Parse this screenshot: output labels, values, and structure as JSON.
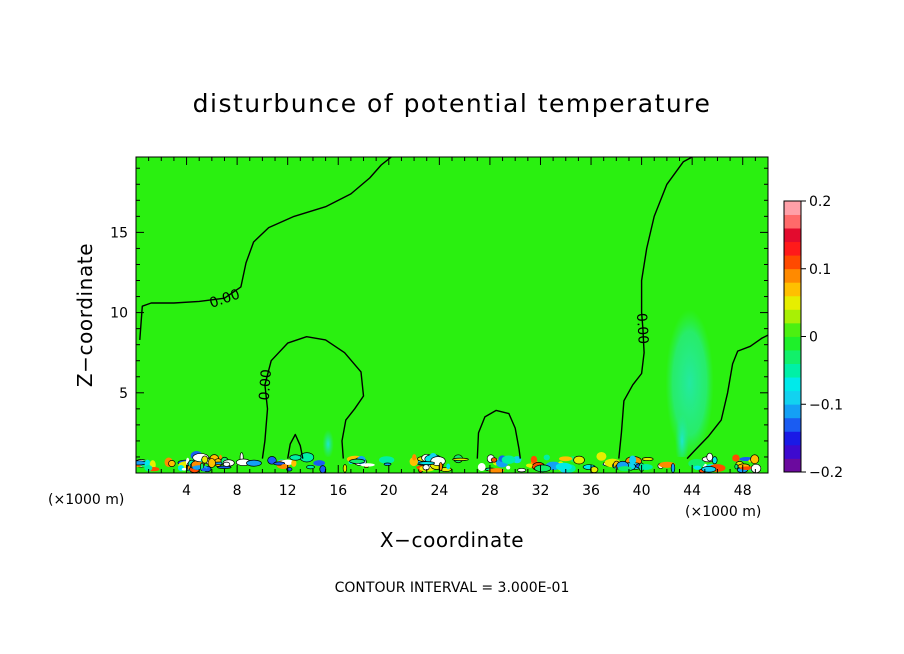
{
  "chart_data": {
    "type": "contour",
    "title": "disturbunce of potential temperature",
    "xlabel": "X−coordinate",
    "ylabel": "Z−coordinate",
    "x_unit": "(×1000 m)",
    "x_unit_right": "(×1000 m)",
    "xlim": [
      0,
      50
    ],
    "ylim": [
      0,
      19.7
    ],
    "x_ticks": [
      4,
      8,
      12,
      16,
      20,
      24,
      28,
      32,
      36,
      40,
      44,
      48
    ],
    "y_ticks": [
      5,
      10,
      15
    ],
    "contour_interval_text": "CONTOUR INTERVAL = 3.000E-01",
    "contour_label": "0.00",
    "background_value": 0.01,
    "colorbar": {
      "ticks": [
        "0.2",
        "0.1",
        "0",
        "−0.1",
        "−0.2"
      ],
      "tick_values": [
        0.2,
        0.1,
        0,
        -0.1,
        -0.2
      ],
      "colors": [
        "#6b0a9e",
        "#3d0acf",
        "#1a1ae6",
        "#1a5cf2",
        "#14a0f5",
        "#12d2f0",
        "#00eaea",
        "#00f0a6",
        "#12f06a",
        "#1ef02a",
        "#4cf011",
        "#a8f005",
        "#e6ee00",
        "#ffc000",
        "#ff8a00",
        "#ff4a00",
        "#ff1a1a",
        "#e30b2e",
        "#ff6a6a",
        "#ffa0a8"
      ]
    },
    "zero_contours": [
      {
        "label": "0.00",
        "points": [
          [
            0.3,
            8.3
          ],
          [
            0.5,
            10.4
          ],
          [
            1.2,
            10.6
          ],
          [
            3,
            10.6
          ],
          [
            5,
            10.7
          ],
          [
            7,
            10.9
          ],
          [
            8.3,
            11.6
          ],
          [
            8.7,
            13.1
          ],
          [
            9.3,
            14.4
          ],
          [
            10.5,
            15.3
          ],
          [
            12.5,
            16.0
          ],
          [
            15,
            16.6
          ],
          [
            17,
            17.4
          ],
          [
            18.5,
            18.4
          ],
          [
            19.4,
            19.2
          ],
          [
            20.2,
            19.7
          ]
        ]
      },
      {
        "label": "0.00",
        "points": [
          [
            10,
            0.9
          ],
          [
            10.2,
            2
          ],
          [
            10.4,
            4
          ],
          [
            10.2,
            5.5
          ],
          [
            10.7,
            7
          ],
          [
            12,
            8.1
          ],
          [
            13.5,
            8.5
          ],
          [
            15,
            8.3
          ],
          [
            16.5,
            7.5
          ],
          [
            17.8,
            6.3
          ],
          [
            18,
            4.8
          ],
          [
            17.3,
            4
          ],
          [
            16.6,
            3.3
          ],
          [
            16.3,
            2
          ],
          [
            16.4,
            0.9
          ]
        ]
      },
      {
        "label": "",
        "points": [
          [
            12,
            0.9
          ],
          [
            12.2,
            1.8
          ],
          [
            12.6,
            2.4
          ],
          [
            13,
            1.7
          ],
          [
            13.2,
            0.9
          ]
        ]
      },
      {
        "label": "",
        "points": [
          [
            27,
            0.9
          ],
          [
            27.1,
            2.5
          ],
          [
            27.6,
            3.5
          ],
          [
            28.5,
            3.9
          ],
          [
            29.5,
            3.7
          ],
          [
            30,
            2.8
          ],
          [
            30.3,
            1.5
          ],
          [
            30.4,
            0.9
          ]
        ]
      },
      {
        "label": "0.00",
        "points": [
          [
            38.2,
            0.9
          ],
          [
            38.4,
            2.5
          ],
          [
            38.6,
            4.5
          ],
          [
            39.3,
            5.5
          ],
          [
            40,
            6.2
          ],
          [
            40.2,
            7.5
          ],
          [
            40.1,
            9.0
          ],
          [
            40.0,
            10
          ],
          [
            40.0,
            12
          ],
          [
            40.4,
            14
          ],
          [
            41,
            16
          ],
          [
            42,
            18
          ],
          [
            43.3,
            19.4
          ],
          [
            44,
            19.7
          ]
        ]
      },
      {
        "label": "",
        "points": [
          [
            43.6,
            0.9
          ],
          [
            44.2,
            1.4
          ],
          [
            45.3,
            2.3
          ],
          [
            46.3,
            3.3
          ],
          [
            46.8,
            5.0
          ],
          [
            47.2,
            6.8
          ],
          [
            47.6,
            7.6
          ],
          [
            48.6,
            7.9
          ],
          [
            49.5,
            8.4
          ],
          [
            50,
            8.6
          ]
        ]
      }
    ],
    "negative_plumes": [
      {
        "cx": 43.8,
        "cy": 5.6,
        "rx": 1.9,
        "ry": 4.6,
        "value": -0.015
      },
      {
        "cx": 43.2,
        "cy": 2.0,
        "rx": 0.55,
        "ry": 1.7,
        "value": -0.06
      },
      {
        "cx": 15.2,
        "cy": 1.8,
        "rx": 0.45,
        "ry": 0.9,
        "value": -0.04
      }
    ]
  }
}
